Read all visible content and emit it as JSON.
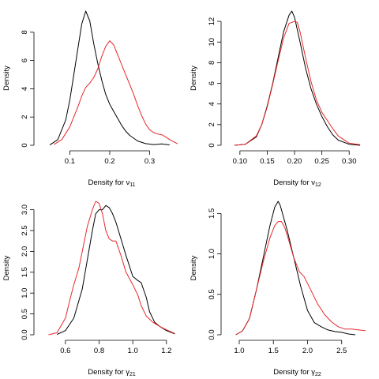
{
  "chart_data": [
    {
      "type": "line",
      "xlabel": "Density for ν",
      "xlabel_sub": "11",
      "ylabel": "Density",
      "xlim": [
        0.03,
        0.38
      ],
      "ylim": [
        0,
        9.5
      ],
      "xticks": [
        0.1,
        0.2,
        0.3
      ],
      "xtick_labels": [
        "0.1",
        "0.2",
        "0.3"
      ],
      "yticks": [
        0,
        2,
        4,
        6,
        8
      ],
      "ytick_labels": [
        "0",
        "2",
        "4",
        "6",
        "8"
      ],
      "series": [
        {
          "color": "#000000",
          "x": [
            0.05,
            0.07,
            0.09,
            0.1,
            0.11,
            0.12,
            0.13,
            0.14,
            0.15,
            0.16,
            0.17,
            0.18,
            0.19,
            0.2,
            0.21,
            0.22,
            0.23,
            0.24,
            0.25,
            0.27,
            0.29,
            0.31,
            0.33,
            0.35
          ],
          "y": [
            0.02,
            0.4,
            1.8,
            3.2,
            5.0,
            6.8,
            8.6,
            9.5,
            8.8,
            7.2,
            5.8,
            4.6,
            3.6,
            2.9,
            2.4,
            1.9,
            1.4,
            1.0,
            0.7,
            0.3,
            0.12,
            0.05,
            0.1,
            0.03
          ]
        },
        {
          "color": "#e8282b",
          "x": [
            0.06,
            0.08,
            0.1,
            0.12,
            0.13,
            0.14,
            0.15,
            0.16,
            0.17,
            0.18,
            0.19,
            0.2,
            0.21,
            0.22,
            0.23,
            0.24,
            0.25,
            0.26,
            0.27,
            0.28,
            0.29,
            0.3,
            0.31,
            0.32,
            0.33,
            0.34,
            0.35,
            0.37
          ],
          "y": [
            0.05,
            0.4,
            1.3,
            2.7,
            3.5,
            4.1,
            4.4,
            4.8,
            5.4,
            6.3,
            7.0,
            7.4,
            7.1,
            6.4,
            5.7,
            5.0,
            4.3,
            3.6,
            2.8,
            2.1,
            1.5,
            1.1,
            0.9,
            0.8,
            0.75,
            0.6,
            0.4,
            0.1
          ]
        }
      ]
    },
    {
      "type": "line",
      "xlabel": "Density for ν",
      "xlabel_sub": "12",
      "ylabel": "Density",
      "xlim": [
        0.08,
        0.33
      ],
      "ylim": [
        0,
        13
      ],
      "xticks": [
        0.1,
        0.15,
        0.2,
        0.25,
        0.3
      ],
      "xtick_labels": [
        "0.10",
        "0.15",
        "0.20",
        "0.25",
        "0.30"
      ],
      "yticks": [
        0,
        2,
        4,
        6,
        8,
        10,
        12
      ],
      "ytick_labels": [
        "0",
        "2",
        "4",
        "6",
        "8",
        "10",
        "12"
      ],
      "series": [
        {
          "color": "#000000",
          "x": [
            0.09,
            0.11,
            0.13,
            0.14,
            0.15,
            0.16,
            0.17,
            0.18,
            0.19,
            0.195,
            0.2,
            0.21,
            0.22,
            0.23,
            0.24,
            0.25,
            0.26,
            0.27,
            0.28,
            0.3,
            0.32
          ],
          "y": [
            0.0,
            0.1,
            0.8,
            2.0,
            3.8,
            6.0,
            8.5,
            11.0,
            12.6,
            13.0,
            12.4,
            10.0,
            7.5,
            5.5,
            4.0,
            2.8,
            1.8,
            1.0,
            0.5,
            0.1,
            0.0
          ]
        },
        {
          "color": "#e8282b",
          "x": [
            0.09,
            0.11,
            0.13,
            0.14,
            0.15,
            0.16,
            0.17,
            0.18,
            0.19,
            0.2,
            0.205,
            0.21,
            0.22,
            0.23,
            0.24,
            0.25,
            0.26,
            0.27,
            0.28,
            0.3,
            0.32
          ],
          "y": [
            0.0,
            0.1,
            0.9,
            2.0,
            3.7,
            5.9,
            8.2,
            10.4,
            11.8,
            12.0,
            11.9,
            11.0,
            8.5,
            6.2,
            4.4,
            3.2,
            2.4,
            1.6,
            0.9,
            0.2,
            0.05
          ]
        }
      ]
    },
    {
      "type": "line",
      "xlabel": "Density for γ",
      "xlabel_sub": "21",
      "ylabel": "Density",
      "xlim": [
        0.46,
        1.29
      ],
      "ylim": [
        0,
        3.2
      ],
      "xticks": [
        0.6,
        0.8,
        1.0,
        1.2
      ],
      "xtick_labels": [
        "0.6",
        "0.8",
        "1.0",
        "1.2"
      ],
      "yticks": [
        0.0,
        0.5,
        1.0,
        1.5,
        2.0,
        2.5,
        3.0
      ],
      "ytick_labels": [
        "0.0",
        "0.5",
        "1.0",
        "1.5",
        "2.0",
        "2.5",
        "3.0"
      ],
      "series": [
        {
          "color": "#000000",
          "x": [
            0.55,
            0.6,
            0.65,
            0.7,
            0.73,
            0.76,
            0.78,
            0.8,
            0.82,
            0.84,
            0.86,
            0.88,
            0.9,
            0.93,
            0.96,
            1.0,
            1.03,
            1.05,
            1.08,
            1.1,
            1.13,
            1.16,
            1.2,
            1.25
          ],
          "y": [
            0.01,
            0.1,
            0.4,
            1.1,
            1.8,
            2.5,
            2.9,
            3.0,
            3.0,
            3.1,
            3.05,
            2.9,
            2.7,
            2.3,
            1.9,
            1.4,
            1.3,
            1.25,
            0.9,
            0.55,
            0.3,
            0.2,
            0.1,
            0.02
          ]
        },
        {
          "color": "#e8282b",
          "x": [
            0.5,
            0.55,
            0.6,
            0.63,
            0.65,
            0.68,
            0.7,
            0.73,
            0.76,
            0.78,
            0.8,
            0.82,
            0.84,
            0.86,
            0.88,
            0.9,
            0.93,
            0.96,
            1.0,
            1.03,
            1.05,
            1.08,
            1.12,
            1.16,
            1.2,
            1.25
          ],
          "y": [
            0.0,
            0.05,
            0.4,
            0.9,
            1.2,
            1.6,
            2.0,
            2.6,
            3.0,
            3.2,
            3.15,
            2.9,
            2.5,
            2.3,
            2.25,
            2.25,
            1.9,
            1.5,
            1.2,
            0.95,
            0.7,
            0.45,
            0.3,
            0.2,
            0.12,
            0.03
          ]
        }
      ]
    },
    {
      "type": "line",
      "xlabel": "Density for γ",
      "xlabel_sub": "22",
      "ylabel": "Density",
      "xlim": [
        0.85,
        2.85
      ],
      "ylim": [
        0,
        1.65
      ],
      "xticks": [
        1.0,
        1.5,
        2.0,
        2.5
      ],
      "xtick_labels": [
        "1.0",
        "1.5",
        "2.0",
        "2.5"
      ],
      "yticks": [
        0.0,
        0.5,
        1.0,
        1.5
      ],
      "ytick_labels": [
        "0.0",
        "0.5",
        "1.0",
        "1.5"
      ],
      "series": [
        {
          "color": "#000000",
          "x": [
            0.95,
            1.05,
            1.15,
            1.25,
            1.35,
            1.45,
            1.52,
            1.57,
            1.6,
            1.65,
            1.7,
            1.8,
            1.9,
            2.0,
            2.1,
            2.2,
            2.3,
            2.4,
            2.5,
            2.6,
            2.7
          ],
          "y": [
            0.0,
            0.05,
            0.2,
            0.55,
            0.95,
            1.35,
            1.58,
            1.65,
            1.6,
            1.45,
            1.3,
            0.95,
            0.6,
            0.3,
            0.15,
            0.1,
            0.06,
            0.04,
            0.03,
            0.01,
            0.0
          ]
        },
        {
          "color": "#e8282b",
          "x": [
            0.95,
            1.05,
            1.15,
            1.25,
            1.35,
            1.45,
            1.52,
            1.57,
            1.62,
            1.67,
            1.72,
            1.8,
            1.88,
            1.95,
            2.05,
            2.15,
            2.25,
            2.35,
            2.45,
            2.55,
            2.65,
            2.75,
            2.85
          ],
          "y": [
            0.0,
            0.05,
            0.2,
            0.55,
            0.9,
            1.2,
            1.35,
            1.4,
            1.4,
            1.32,
            1.18,
            0.95,
            0.78,
            0.72,
            0.55,
            0.38,
            0.25,
            0.16,
            0.1,
            0.07,
            0.07,
            0.06,
            0.05
          ]
        }
      ]
    }
  ]
}
